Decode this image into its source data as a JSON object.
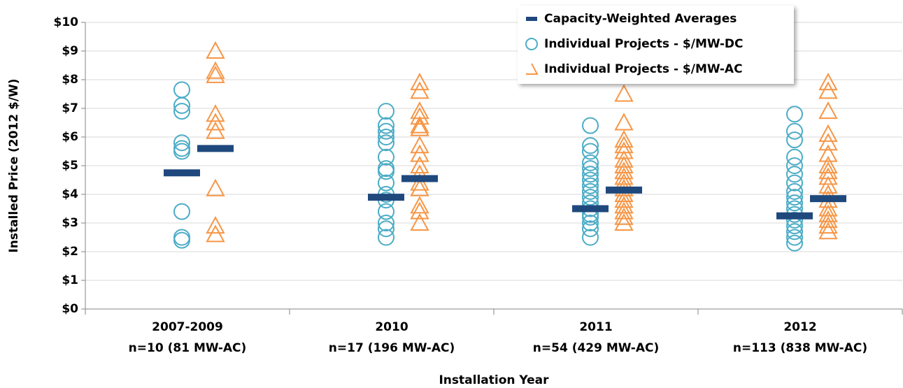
{
  "chart_data": {
    "type": "scatter",
    "x_label": "Installation Year",
    "y_label": "Installed Price (2012 $/W)",
    "categories": [
      "2007-2009",
      "2010",
      "2011",
      "2012"
    ],
    "category_counts": [
      "n=10 (81 MW-AC)",
      "n=17 (196 MW-AC)",
      "n=54 (429 MW-AC)",
      "n=113 (838 MW-AC)"
    ],
    "ylim": [
      0,
      10
    ],
    "yticks": [
      {
        "value": 0,
        "label": "$0"
      },
      {
        "value": 1,
        "label": "$1"
      },
      {
        "value": 2,
        "label": "$2"
      },
      {
        "value": 3,
        "label": "$3"
      },
      {
        "value": 4,
        "label": "$4"
      },
      {
        "value": 5,
        "label": "$5"
      },
      {
        "value": 6,
        "label": "$6"
      },
      {
        "value": 7,
        "label": "$7"
      },
      {
        "value": 8,
        "label": "$8"
      },
      {
        "value": 9,
        "label": "$9"
      },
      {
        "value": 10,
        "label": "$10"
      }
    ],
    "grid": true,
    "legend_position": "upper right",
    "series": [
      {
        "name": "Capacity-Weighted Averages",
        "color": "#1f497d",
        "marker": "dash",
        "values": [
          [
            4.75,
            5.6
          ],
          [
            3.9,
            4.55
          ],
          [
            3.5,
            4.15
          ],
          [
            3.25,
            3.85
          ]
        ]
      },
      {
        "name": "Individual Projects - $/MW-DC",
        "color": "#4bacc6",
        "marker": "circle",
        "values": [
          [
            7.65,
            7.1,
            6.9,
            5.8,
            5.6,
            5.5,
            3.4,
            2.5,
            2.4
          ],
          [
            6.9,
            6.4,
            6.2,
            6.0,
            5.8,
            5.3,
            4.9,
            4.8,
            4.4,
            4.0,
            3.8,
            3.4,
            3.0,
            2.8,
            2.5
          ],
          [
            6.4,
            5.7,
            5.5,
            5.1,
            4.9,
            4.7,
            4.5,
            4.3,
            4.1,
            3.9,
            3.7,
            3.5,
            3.3,
            3.2,
            3.0,
            2.8,
            2.5
          ],
          [
            6.8,
            6.2,
            5.9,
            5.3,
            5.0,
            4.7,
            4.4,
            4.1,
            3.9,
            3.7,
            3.5,
            3.3,
            3.1,
            2.9,
            2.7,
            2.5,
            2.3
          ]
        ]
      },
      {
        "name": "Individual Projects - $/MW-AC",
        "color": "#f79646",
        "marker": "triangle",
        "values": [
          [
            9.0,
            8.3,
            8.15,
            6.8,
            6.5,
            6.2,
            4.2,
            2.9,
            2.6
          ],
          [
            7.9,
            7.6,
            6.9,
            6.7,
            6.4,
            6.3,
            5.7,
            5.4,
            5.0,
            4.7,
            4.4,
            4.2,
            3.6,
            3.4,
            3.0
          ],
          [
            7.5,
            6.5,
            5.9,
            5.7,
            5.5,
            5.2,
            5.0,
            4.8,
            4.6,
            4.4,
            4.2,
            4.0,
            3.8,
            3.6,
            3.4,
            3.2,
            3.0
          ],
          [
            7.9,
            7.6,
            6.9,
            6.1,
            5.8,
            5.4,
            5.0,
            4.8,
            4.6,
            4.3,
            4.0,
            3.8,
            3.5,
            3.3,
            3.1,
            2.9,
            2.7
          ]
        ]
      }
    ]
  }
}
